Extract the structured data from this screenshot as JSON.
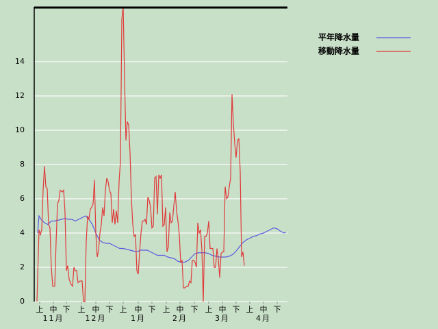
{
  "chart_data": {
    "type": "line",
    "xlim": [
      0,
      185
    ],
    "ylim": [
      0,
      17.2
    ],
    "yticks": [
      0,
      2,
      4,
      6,
      8,
      10,
      12,
      14
    ],
    "grid": true,
    "legend": "top-right",
    "xticks": [
      {
        "value": 4,
        "label": "上"
      },
      {
        "value": 14,
        "label": "中"
      },
      {
        "value": 23.5,
        "label": "下"
      },
      {
        "value": 34.5,
        "label": "上"
      },
      {
        "value": 45,
        "label": "中"
      },
      {
        "value": 55,
        "label": "下"
      },
      {
        "value": 65,
        "label": "上"
      },
      {
        "value": 76,
        "label": "中"
      },
      {
        "value": 86,
        "label": "下"
      },
      {
        "value": 96.5,
        "label": "上"
      },
      {
        "value": 106.5,
        "label": "中"
      },
      {
        "value": 117,
        "label": "下"
      },
      {
        "value": 127.5,
        "label": "上"
      },
      {
        "value": 137.5,
        "label": "中"
      },
      {
        "value": 147.5,
        "label": "下"
      },
      {
        "value": 157.5,
        "label": "上"
      },
      {
        "value": 167.5,
        "label": "中"
      },
      {
        "value": 177.5,
        "label": "下"
      }
    ],
    "months": [
      {
        "value": 14,
        "label": "11月"
      },
      {
        "value": 45,
        "label": "12月"
      },
      {
        "value": 76,
        "label": "1月"
      },
      {
        "value": 106.5,
        "label": "2月"
      },
      {
        "value": 137.5,
        "label": "3月"
      },
      {
        "value": 167.5,
        "label": "4月"
      }
    ],
    "series": [
      {
        "name": "平年降水量",
        "color": "#5a5ae0",
        "x": [
          2.5,
          3.5,
          5,
          7.5,
          10,
          12.5,
          15,
          17.5,
          20,
          22.5,
          25,
          27.5,
          30,
          32.5,
          35,
          37.5,
          40,
          42.5,
          45,
          47.5,
          50,
          52.5,
          55,
          57.5,
          60,
          62.5,
          65,
          67.5,
          70,
          72.5,
          75,
          77.5,
          80,
          82.5,
          85,
          87.5,
          90,
          92.5,
          95,
          97.5,
          100,
          102.5,
          105,
          107.5,
          110,
          112.5,
          115,
          117.5,
          120,
          122.5,
          125,
          127.5,
          130,
          132.5,
          135,
          137.5,
          140,
          142.5,
          145,
          147.5,
          150,
          152.5,
          155,
          157.5,
          160,
          162.5,
          165,
          167.5,
          170,
          172.5,
          175,
          177.5,
          180,
          182.5,
          184
        ],
        "values": [
          4.0,
          5.0,
          4.8,
          4.6,
          4.5,
          4.7,
          4.7,
          4.75,
          4.8,
          4.85,
          4.8,
          4.8,
          4.7,
          4.8,
          4.9,
          5.0,
          4.8,
          4.5,
          4.0,
          3.6,
          3.45,
          3.4,
          3.4,
          3.3,
          3.2,
          3.1,
          3.1,
          3.05,
          3.0,
          2.95,
          2.9,
          3.0,
          3.0,
          3.0,
          2.9,
          2.8,
          2.7,
          2.7,
          2.7,
          2.6,
          2.55,
          2.5,
          2.35,
          2.3,
          2.3,
          2.4,
          2.6,
          2.8,
          2.85,
          2.85,
          2.85,
          2.8,
          2.7,
          2.65,
          2.6,
          2.6,
          2.6,
          2.65,
          2.75,
          2.95,
          3.2,
          3.45,
          3.6,
          3.7,
          3.8,
          3.85,
          3.95,
          4.0,
          4.1,
          4.2,
          4.3,
          4.25,
          4.1,
          4.0,
          4.05
        ]
      },
      {
        "name": "移動降水量",
        "color": "#e03a3a",
        "x": [
          2,
          3.5,
          4.5,
          5.5,
          6.5,
          7.5,
          8.5,
          9.5,
          10.5,
          11.5,
          12.5,
          13.5,
          15,
          16,
          17,
          18,
          19,
          20.5,
          21.5,
          22.5,
          23.5,
          24.5,
          25.5,
          27,
          28,
          29,
          30,
          31,
          32,
          33.5,
          35,
          36,
          37,
          38,
          39,
          40,
          41,
          42,
          43,
          44,
          45,
          46,
          47,
          48,
          49,
          50,
          51,
          52,
          53,
          54,
          55,
          56,
          57,
          58,
          59,
          60,
          61,
          62,
          63,
          64,
          65,
          66,
          67,
          68,
          69,
          70,
          71,
          72,
          73,
          74,
          75,
          76,
          77,
          78,
          79,
          80,
          81,
          82,
          83,
          84,
          85,
          86,
          87,
          88,
          89,
          90,
          91,
          92,
          93,
          94,
          95,
          96,
          97,
          98,
          99,
          100,
          101,
          102,
          103,
          104,
          105,
          106,
          107,
          108,
          109,
          110,
          111.5,
          112.5,
          113.5,
          114.5,
          115.5,
          116.5,
          117.5,
          118.5,
          119.5,
          120.5,
          121.5,
          122.5,
          123.5,
          124.5,
          125.5,
          126.5,
          127.5,
          128.5,
          129.5,
          130.5,
          131.5,
          132.5,
          133.5,
          134.5,
          135.5,
          136.5,
          137.5,
          138.5,
          139.5,
          140.5,
          141.5,
          142.5,
          143.5,
          144.5,
          145.5,
          146.5,
          147.5,
          148.5,
          149.5,
          150.5,
          151.5,
          152.5,
          153.5
        ],
        "values": [
          0,
          4.2,
          3.9,
          4.2,
          6.5,
          7.9,
          6.7,
          6.6,
          4.5,
          4.3,
          2.0,
          0.9,
          0.9,
          3.5,
          5.7,
          5.9,
          6.5,
          6.4,
          6.5,
          5.2,
          1.8,
          2.1,
          1.3,
          1.0,
          0.9,
          2.0,
          1.8,
          1.8,
          1.1,
          1.2,
          1.2,
          0,
          0,
          3.5,
          5.0,
          4.8,
          5.4,
          5.5,
          5.7,
          7.1,
          4.0,
          2.6,
          3.0,
          4.0,
          4.5,
          5.5,
          5.0,
          6.5,
          7.2,
          7.0,
          6.5,
          6.3,
          4.6,
          5.4,
          4.5,
          5.3,
          4.6,
          7.0,
          8.2,
          16.5,
          17.2,
          13.0,
          9.4,
          10.5,
          10.3,
          8.7,
          6.0,
          4.5,
          3.8,
          3.9,
          1.8,
          1.6,
          2.9,
          4.0,
          4.7,
          4.7,
          4.8,
          4.5,
          6.1,
          5.9,
          5.5,
          4.3,
          4.4,
          7.2,
          7.3,
          5.1,
          7.4,
          7.2,
          7.4,
          4.4,
          4.5,
          5.5,
          2.9,
          3.2,
          5.2,
          4.6,
          4.7,
          5.6,
          6.4,
          5.3,
          4.7,
          3.9,
          2.3,
          2.4,
          0.8,
          0.8,
          0.9,
          0.9,
          1.2,
          1.1,
          2.4,
          2.4,
          2.3,
          2.0,
          4.6,
          4.0,
          4.2,
          3.0,
          0,
          3.8,
          3.8,
          4.0,
          4.7,
          3.1,
          3.1,
          3.1,
          2.0,
          2.0,
          3.1,
          2.5,
          1.4,
          2.8,
          2.9,
          2.9,
          6.7,
          6.0,
          6.1,
          6.7,
          7.2,
          12.1,
          10.4,
          9.2,
          8.4,
          9.4,
          9.5,
          7.6,
          2.6,
          2.9,
          2.1
        ]
      }
    ]
  }
}
